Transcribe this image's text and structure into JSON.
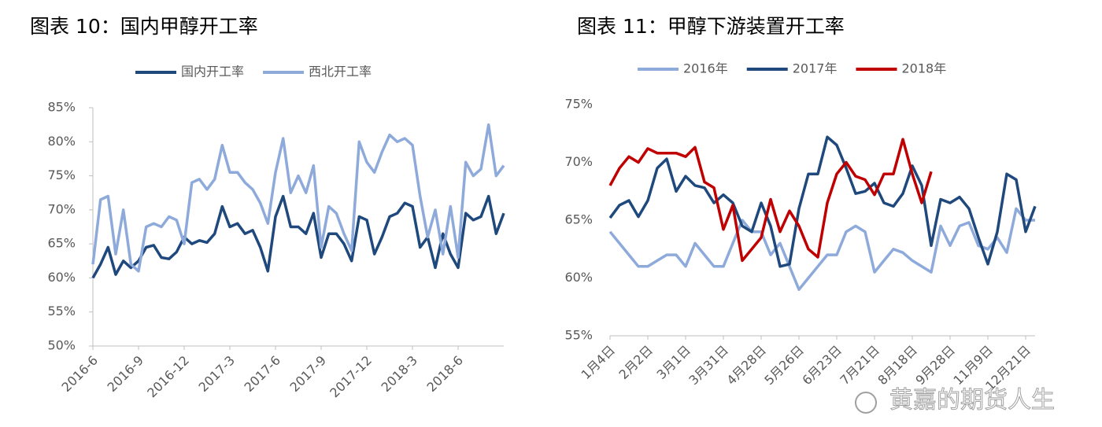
{
  "chart_data": [
    {
      "type": "line",
      "title": "图表 10：国内甲醇开工率",
      "categories": [
        "2016-6",
        null,
        null,
        null,
        null,
        null,
        "2016-9",
        null,
        null,
        null,
        null,
        null,
        "2016-12",
        null,
        null,
        null,
        null,
        null,
        "2017-3",
        null,
        null,
        null,
        null,
        null,
        "2017-6",
        null,
        null,
        null,
        null,
        null,
        "2017-9",
        null,
        null,
        null,
        null,
        null,
        "2017-12",
        null,
        null,
        null,
        null,
        null,
        "2018-3",
        null,
        null,
        null,
        null,
        null,
        "2018-6",
        null,
        null,
        null,
        null,
        null,
        null
      ],
      "series": [
        {
          "name": "国内开工率",
          "color": "#1f497d",
          "values": [
            60,
            62,
            64.5,
            60.5,
            62.5,
            61.5,
            62.5,
            64.5,
            64.8,
            63,
            62.8,
            63.8,
            66,
            65,
            65.5,
            65.2,
            66.5,
            70.5,
            67.5,
            68,
            66.5,
            67,
            64.5,
            61,
            69,
            72,
            67.5,
            67.5,
            66.5,
            69.5,
            63,
            66.5,
            66.5,
            65,
            62.5,
            69,
            68.5,
            63.5,
            66,
            69,
            69.5,
            71,
            70.5,
            64.5,
            66,
            61.5,
            66.5,
            63.5,
            61.5,
            69.5,
            68.5,
            69,
            72,
            66.5,
            69.5
          ]
        },
        {
          "name": "西北开工率",
          "color": "#8eaadb",
          "values": [
            62,
            71.5,
            72,
            63.5,
            70,
            62,
            61,
            67.5,
            68,
            67.5,
            69,
            68.5,
            65,
            74,
            74.5,
            73,
            74.5,
            79.5,
            75.5,
            75.5,
            74,
            73,
            71,
            68,
            75.5,
            80.5,
            72.5,
            75,
            72.5,
            76.5,
            64.5,
            70.5,
            69.5,
            66.5,
            64,
            80,
            77,
            75.5,
            78.5,
            81,
            80,
            80.5,
            79.5,
            72,
            66,
            70,
            63.5,
            70.5,
            63,
            77,
            75,
            76,
            82.5,
            75,
            76.5
          ]
        }
      ],
      "ylim": [
        50,
        85
      ],
      "yticks": [
        {
          "value": 50,
          "label": "50%"
        },
        {
          "value": 55,
          "label": "55%"
        },
        {
          "value": 60,
          "label": "60%"
        },
        {
          "value": 65,
          "label": "65%"
        },
        {
          "value": 70,
          "label": "70%"
        },
        {
          "value": 75,
          "label": "75%"
        },
        {
          "value": 80,
          "label": "80%"
        },
        {
          "value": 85,
          "label": "85%"
        }
      ],
      "grid": false,
      "legend": "top"
    },
    {
      "type": "line",
      "title": "图表 11：甲醇下游装置开工率",
      "categories": [
        "1月4日",
        null,
        null,
        null,
        "2月2日",
        null,
        null,
        null,
        "3月1日",
        null,
        null,
        null,
        "3月31日",
        null,
        null,
        null,
        "4月28日",
        null,
        null,
        null,
        "5月26日",
        null,
        null,
        null,
        "6月23日",
        null,
        null,
        null,
        "7月21日",
        null,
        null,
        null,
        "8月18日",
        null,
        null,
        null,
        "9月28日",
        null,
        null,
        null,
        "11月9日",
        null,
        null,
        null,
        "12月21日",
        null
      ],
      "series": [
        {
          "name": "2016年",
          "color": "#8eaadb",
          "values": [
            64,
            63,
            62,
            61,
            61,
            61.5,
            62,
            62,
            61,
            63,
            62,
            61,
            61,
            63,
            65,
            64,
            64,
            62,
            63,
            61,
            59,
            60,
            61,
            62,
            62,
            64,
            64.5,
            64,
            60.5,
            61.5,
            62.5,
            62.2,
            61.5,
            61,
            60.5,
            64.5,
            62.8,
            64.5,
            64.8,
            62.8,
            62.5,
            63.5,
            62.2,
            66,
            65,
            65
          ]
        },
        {
          "name": "2017年",
          "color": "#1f497d",
          "values": [
            65.2,
            66.3,
            66.7,
            65.3,
            66.7,
            69.5,
            70.3,
            67.5,
            68.8,
            68,
            67.8,
            66.5,
            67.2,
            66.5,
            64.5,
            64,
            66.5,
            64.5,
            61,
            61.2,
            66,
            69,
            69,
            72.2,
            71.5,
            69.5,
            67.3,
            67.5,
            68.2,
            66.5,
            66.2,
            67.3,
            69.7,
            68,
            62.8,
            66.8,
            66.5,
            67,
            66,
            63.5,
            61.2,
            64,
            69,
            68.5,
            64,
            66.2
          ]
        },
        {
          "name": "2018年",
          "color": "#c00000",
          "values": [
            68,
            69.5,
            70.5,
            70,
            71.2,
            70.8,
            70.8,
            70.8,
            70.5,
            71.3,
            68.3,
            67.8,
            64.2,
            66.3,
            61.5,
            62.5,
            63.5,
            66.8,
            64,
            65.8,
            64.5,
            62.5,
            61.8,
            66.5,
            69,
            70,
            68.8,
            68.5,
            67.2,
            69,
            69,
            72,
            69,
            66.5,
            69.2,
            null,
            null,
            null,
            null,
            null,
            null,
            null,
            null,
            null,
            null,
            null
          ]
        }
      ],
      "ylim": [
        55,
        75
      ],
      "yticks": [
        {
          "value": 55,
          "label": "55%"
        },
        {
          "value": 60,
          "label": "60%"
        },
        {
          "value": 65,
          "label": "65%"
        },
        {
          "value": 70,
          "label": "70%"
        },
        {
          "value": 75,
          "label": "75%"
        }
      ],
      "grid": false,
      "legend": "top"
    }
  ],
  "watermark": "黄嘉的期货人生"
}
